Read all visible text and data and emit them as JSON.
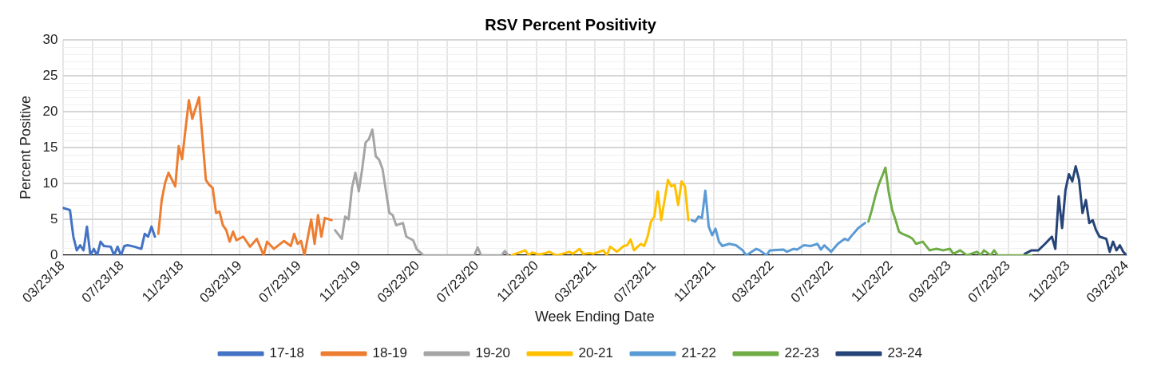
{
  "chart_data": {
    "type": "line",
    "title": "RSV Percent Positivity",
    "xlabel": "Week Ending Date",
    "ylabel": "Percent Positive",
    "xlim": [
      "2018-03-23",
      "2024-03-23"
    ],
    "xticks": [
      {
        "value": "2018-03-23",
        "label": "03/23/18"
      },
      {
        "value": "2018-05-23",
        "label": null
      },
      {
        "value": "2018-07-23",
        "label": "07/23/18"
      },
      {
        "value": "2018-09-23",
        "label": null
      },
      {
        "value": "2018-11-23",
        "label": "11/23/18"
      },
      {
        "value": "2019-01-23",
        "label": null
      },
      {
        "value": "2019-03-23",
        "label": "03/23/19"
      },
      {
        "value": "2019-05-23",
        "label": null
      },
      {
        "value": "2019-07-23",
        "label": "07/23/19"
      },
      {
        "value": "2019-09-23",
        "label": null
      },
      {
        "value": "2019-11-23",
        "label": "11/23/19"
      },
      {
        "value": "2020-01-23",
        "label": null
      },
      {
        "value": "2020-03-23",
        "label": "03/23/20"
      },
      {
        "value": "2020-05-23",
        "label": null
      },
      {
        "value": "2020-07-23",
        "label": "07/23/20"
      },
      {
        "value": "2020-09-23",
        "label": null
      },
      {
        "value": "2020-11-23",
        "label": "11/23/20"
      },
      {
        "value": "2021-01-23",
        "label": null
      },
      {
        "value": "2021-03-23",
        "label": "03/23/21"
      },
      {
        "value": "2021-05-23",
        "label": null
      },
      {
        "value": "2021-07-23",
        "label": "07/23/21"
      },
      {
        "value": "2021-09-23",
        "label": null
      },
      {
        "value": "2021-11-23",
        "label": "11/23/21"
      },
      {
        "value": "2022-01-23",
        "label": null
      },
      {
        "value": "2022-03-23",
        "label": "03/23/22"
      },
      {
        "value": "2022-05-23",
        "label": null
      },
      {
        "value": "2022-07-23",
        "label": "07/23/22"
      },
      {
        "value": "2022-09-23",
        "label": null
      },
      {
        "value": "2022-11-23",
        "label": "11/23/22"
      },
      {
        "value": "2023-01-23",
        "label": null
      },
      {
        "value": "2023-03-23",
        "label": "03/23/23"
      },
      {
        "value": "2023-05-23",
        "label": null
      },
      {
        "value": "2023-07-23",
        "label": "07/23/23"
      },
      {
        "value": "2023-09-23",
        "label": null
      },
      {
        "value": "2023-11-23",
        "label": "11/23/23"
      },
      {
        "value": "2024-01-23",
        "label": null
      },
      {
        "value": "2024-03-23",
        "label": "03/23/24"
      }
    ],
    "ylim": [
      0,
      30
    ],
    "yticks": [
      0,
      {
        "value": 1,
        "label": null
      },
      {
        "value": 2,
        "label": null
      },
      {
        "value": 3,
        "label": null
      },
      {
        "value": 4,
        "label": null
      },
      5,
      {
        "value": 6,
        "label": null
      },
      {
        "value": 7,
        "label": null
      },
      {
        "value": 8,
        "label": null
      },
      {
        "value": 9,
        "label": null
      },
      10,
      {
        "value": 11,
        "label": null
      },
      {
        "value": 12,
        "label": null
      },
      {
        "value": 13,
        "label": null
      },
      {
        "value": 14,
        "label": null
      },
      15,
      {
        "value": 16,
        "label": null
      },
      {
        "value": 17,
        "label": null
      },
      {
        "value": 18,
        "label": null
      },
      {
        "value": 19,
        "label": null
      },
      20,
      {
        "value": 21,
        "label": null
      },
      {
        "value": 22,
        "label": null
      },
      {
        "value": 23,
        "label": null
      },
      {
        "value": 24,
        "label": null
      },
      25,
      {
        "value": 26,
        "label": null
      },
      {
        "value": 27,
        "label": null
      },
      {
        "value": 28,
        "label": null
      },
      {
        "value": 29,
        "label": null
      },
      30
    ],
    "grid": true,
    "legend": "bottom",
    "marker": "none",
    "line_style": "solid",
    "series": [
      {
        "name": "17-18",
        "color": "#4472c4",
        "x": [
          "2018-03-24",
          "2018-04-07",
          "2018-04-14",
          "2018-04-21",
          "2018-04-28",
          "2018-05-05",
          "2018-05-12",
          "2018-05-19",
          "2018-05-26",
          "2018-06-02",
          "2018-06-09",
          "2018-06-16",
          "2018-06-30",
          "2018-07-07",
          "2018-07-14",
          "2018-07-21",
          "2018-07-28",
          "2018-08-04",
          "2018-08-18",
          "2018-09-01",
          "2018-09-08",
          "2018-09-15",
          "2018-09-22",
          "2018-09-29"
        ],
        "values": [
          6.6,
          6.3,
          2.6,
          0.7,
          1.4,
          0.7,
          4.0,
          0,
          0.9,
          0,
          1.9,
          1.3,
          1.2,
          0,
          1.2,
          0,
          1.3,
          1.4,
          1.2,
          0.9,
          3.0,
          2.6,
          4.0,
          2.6
        ]
      },
      {
        "name": "18-19",
        "color": "#ed7d31",
        "x": [
          "2018-10-06",
          "2018-10-13",
          "2018-10-20",
          "2018-10-27",
          "2018-11-10",
          "2018-11-17",
          "2018-11-24",
          "2018-12-08",
          "2018-12-15",
          "2018-12-29",
          "2019-01-12",
          "2019-01-19",
          "2019-01-26",
          "2019-02-02",
          "2019-02-09",
          "2019-02-16",
          "2019-02-23",
          "2019-03-02",
          "2019-03-09",
          "2019-03-16",
          "2019-03-30",
          "2019-04-13",
          "2019-04-27",
          "2019-05-11",
          "2019-05-18",
          "2019-06-01",
          "2019-06-22",
          "2019-07-06",
          "2019-07-13",
          "2019-07-20",
          "2019-07-27",
          "2019-08-03",
          "2019-08-17",
          "2019-08-24",
          "2019-08-31",
          "2019-09-07",
          "2019-09-14",
          "2019-09-28"
        ],
        "values": [
          3.0,
          7.7,
          10.1,
          11.5,
          9.6,
          15.2,
          13.4,
          21.6,
          19.0,
          22.0,
          10.5,
          9.8,
          9.4,
          5.9,
          6.1,
          4.2,
          3.5,
          1.9,
          3.3,
          2.1,
          2.6,
          1.2,
          2.3,
          0,
          1.9,
          0.9,
          2.0,
          1.3,
          3.0,
          1.6,
          2.0,
          0,
          5.0,
          1.6,
          5.6,
          2.6,
          5.2,
          4.9
        ]
      },
      {
        "name": "19-20",
        "color": "#a5a5a5",
        "x": [
          "2019-10-05",
          "2019-10-19",
          "2019-10-26",
          "2019-11-02",
          "2019-11-09",
          "2019-11-16",
          "2019-11-23",
          "2019-11-30",
          "2019-12-07",
          "2019-12-14",
          "2019-12-21",
          "2019-12-28",
          "2020-01-04",
          "2020-01-11",
          "2020-01-25",
          "2020-02-01",
          "2020-02-08",
          "2020-02-22",
          "2020-02-29",
          "2020-03-14",
          "2020-03-21",
          "2020-04-04",
          "2020-07-18",
          "2020-07-25",
          "2020-08-01",
          "2020-09-12",
          "2020-09-19",
          "2020-09-26"
        ],
        "values": [
          3.5,
          2.3,
          5.4,
          5.0,
          9.4,
          11.5,
          8.9,
          12.0,
          15.7,
          16.2,
          17.5,
          13.8,
          13.3,
          12.0,
          5.9,
          5.6,
          4.2,
          4.5,
          2.6,
          2.1,
          0.9,
          0,
          0,
          1.1,
          0,
          0,
          0.6,
          0
        ]
      },
      {
        "name": "20-21",
        "color": "#ffc000",
        "x": [
          "2020-10-03",
          "2020-10-31",
          "2020-11-07",
          "2020-11-14",
          "2020-11-28",
          "2020-12-12",
          "2020-12-19",
          "2021-01-02",
          "2021-01-16",
          "2021-01-30",
          "2021-02-06",
          "2021-02-20",
          "2021-02-27",
          "2021-03-13",
          "2021-03-20",
          "2021-04-10",
          "2021-04-17",
          "2021-04-24",
          "2021-05-08",
          "2021-05-22",
          "2021-05-29",
          "2021-06-05",
          "2021-06-12",
          "2021-06-26",
          "2021-07-03",
          "2021-07-10",
          "2021-07-17",
          "2021-07-24",
          "2021-07-31",
          "2021-08-07",
          "2021-08-21",
          "2021-08-28",
          "2021-09-04",
          "2021-09-11",
          "2021-09-18",
          "2021-09-25",
          "2021-10-02"
        ],
        "values": [
          0,
          0.7,
          0,
          0.4,
          0.1,
          0.3,
          0.5,
          0,
          0.2,
          0.5,
          0.2,
          0.9,
          0.2,
          0.3,
          0.2,
          0.7,
          0,
          1.2,
          0.5,
          1.3,
          1.4,
          2.2,
          0.7,
          1.6,
          1.3,
          2.6,
          4.7,
          5.4,
          8.9,
          4.9,
          10.5,
          9.6,
          9.8,
          7.0,
          10.3,
          9.6,
          4.9
        ]
      },
      {
        "name": "21-22",
        "color": "#5b9bd5",
        "x": [
          "2021-10-09",
          "2021-10-16",
          "2021-10-23",
          "2021-10-30",
          "2021-11-06",
          "2021-11-13",
          "2021-11-20",
          "2021-11-27",
          "2021-12-04",
          "2021-12-11",
          "2021-12-25",
          "2022-01-08",
          "2022-01-22",
          "2022-01-29",
          "2022-02-05",
          "2022-02-19",
          "2022-02-26",
          "2022-03-12",
          "2022-03-19",
          "2022-04-16",
          "2022-04-23",
          "2022-05-07",
          "2022-05-14",
          "2022-05-28",
          "2022-06-11",
          "2022-06-25",
          "2022-07-02",
          "2022-07-09",
          "2022-07-23",
          "2022-08-06",
          "2022-08-20",
          "2022-08-27",
          "2022-09-03",
          "2022-09-17",
          "2022-10-01"
        ],
        "values": [
          4.9,
          4.7,
          5.4,
          5.2,
          9.0,
          4.0,
          2.8,
          3.7,
          1.9,
          1.3,
          1.6,
          1.4,
          0.7,
          0,
          0.3,
          0.9,
          0.7,
          0,
          0.7,
          0.8,
          0.5,
          0.9,
          0.8,
          1.4,
          1.3,
          1.6,
          0.8,
          1.4,
          0.5,
          1.6,
          2.3,
          2.1,
          2.7,
          3.8,
          4.5
        ]
      },
      {
        "name": "22-23",
        "color": "#70ad47",
        "x": [
          "2022-10-08",
          "2022-10-15",
          "2022-10-22",
          "2022-10-29",
          "2022-11-12",
          "2022-11-19",
          "2022-11-26",
          "2022-12-03",
          "2022-12-10",
          "2022-12-17",
          "2022-12-31",
          "2023-01-07",
          "2023-01-14",
          "2023-01-28",
          "2023-02-11",
          "2023-02-25",
          "2023-03-11",
          "2023-03-25",
          "2023-04-01",
          "2023-04-15",
          "2023-04-29",
          "2023-05-20",
          "2023-05-27",
          "2023-06-03",
          "2023-06-17",
          "2023-06-24",
          "2023-07-01",
          "2023-09-09"
        ],
        "values": [
          4.7,
          6.3,
          8.2,
          9.8,
          12.2,
          8.7,
          6.3,
          4.9,
          3.3,
          3.0,
          2.6,
          2.3,
          1.6,
          1.9,
          0.7,
          0.9,
          0.7,
          0.9,
          0.2,
          0.7,
          0,
          0.5,
          0,
          0.7,
          0,
          0.7,
          0,
          0
        ]
      },
      {
        "name": "23-24",
        "color": "#264478",
        "x": [
          "2023-08-26",
          "2023-09-09",
          "2023-09-23",
          "2023-10-07",
          "2023-10-21",
          "2023-10-28",
          "2023-11-04",
          "2023-11-11",
          "2023-11-18",
          "2023-11-25",
          "2023-12-02",
          "2023-12-09",
          "2023-12-16",
          "2023-12-23",
          "2023-12-30",
          "2024-01-06",
          "2024-01-13",
          "2024-01-20",
          "2024-01-27",
          "2024-02-10",
          "2024-02-17",
          "2024-02-24",
          "2024-03-02",
          "2024-03-09",
          "2024-03-16",
          "2024-03-23"
        ],
        "values": [
          0.2,
          0.7,
          0.7,
          1.6,
          2.6,
          0.9,
          8.2,
          3.8,
          9.1,
          11.3,
          10.3,
          12.4,
          10.5,
          5.9,
          7.7,
          4.5,
          4.9,
          3.5,
          2.6,
          2.3,
          0.5,
          1.9,
          0.7,
          1.4,
          0.5,
          0
        ]
      }
    ]
  }
}
